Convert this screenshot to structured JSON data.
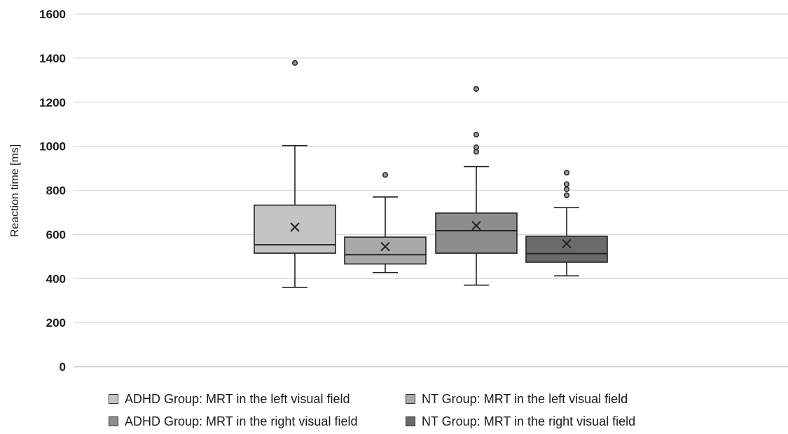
{
  "chart_data": {
    "type": "box",
    "title": "",
    "xlabel": "",
    "ylabel": "Reaction time [ms]",
    "ylim": [
      0,
      1600
    ],
    "yticks": [
      0,
      200,
      400,
      600,
      800,
      1000,
      1200,
      1400,
      1600
    ],
    "grid": true,
    "legend_position": "bottom",
    "series": [
      {
        "name": "ADHD Group: MRT in the left visual field",
        "color": "#c4c4c4",
        "min": 360,
        "q1": 515,
        "median": 553,
        "q3": 733,
        "max": 1003,
        "mean": 633,
        "outliers": [
          1378
        ]
      },
      {
        "name": "NT Group: MRT in the left visual field",
        "color": "#a9a9a9",
        "min": 427,
        "q1": 466,
        "median": 508,
        "q3": 588,
        "max": 770,
        "mean": 545,
        "outliers": [
          870
        ]
      },
      {
        "name": "ADHD Group: MRT in the right visual field",
        "color": "#8d8d8d",
        "min": 370,
        "q1": 515,
        "median": 617,
        "q3": 697,
        "max": 908,
        "mean": 640,
        "outliers": [
          975,
          995,
          1053,
          1260
        ]
      },
      {
        "name": "NT Group: MRT in the right visual field",
        "color": "#6b6b6b",
        "min": 412,
        "q1": 474,
        "median": 513,
        "q3": 592,
        "max": 722,
        "mean": 558,
        "outliers": [
          778,
          805,
          828,
          880
        ]
      }
    ]
  }
}
